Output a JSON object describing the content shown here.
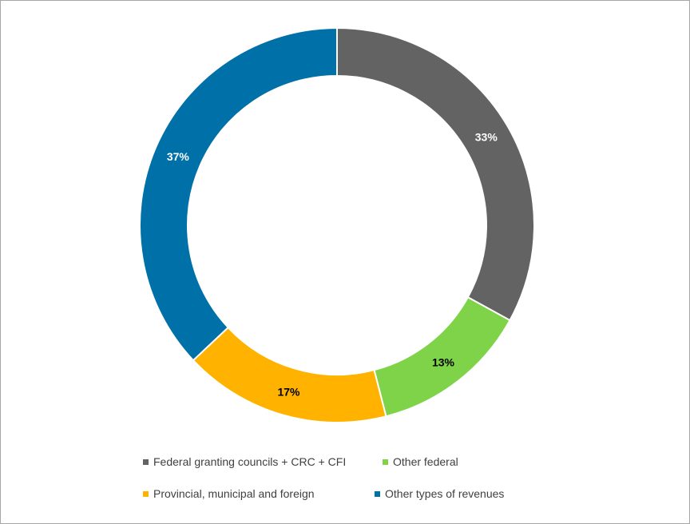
{
  "chart_data": {
    "type": "pie",
    "variant": "doughnut",
    "categories": [
      "Federal granting councils + CRC + CFI",
      "Other federal",
      "Provincial, municipal and foreign",
      "Other types of revenues"
    ],
    "values": [
      33,
      13,
      17,
      37
    ],
    "labels": [
      "33%",
      "13%",
      "17%",
      "37%"
    ],
    "colors": [
      "#636363",
      "#7ed348",
      "#ffb300",
      "#0070a8"
    ],
    "label_colors": [
      "#ffffff",
      "#000000",
      "#000000",
      "#ffffff"
    ],
    "legend_position": "bottom",
    "start_angle": "top, clockwise"
  }
}
